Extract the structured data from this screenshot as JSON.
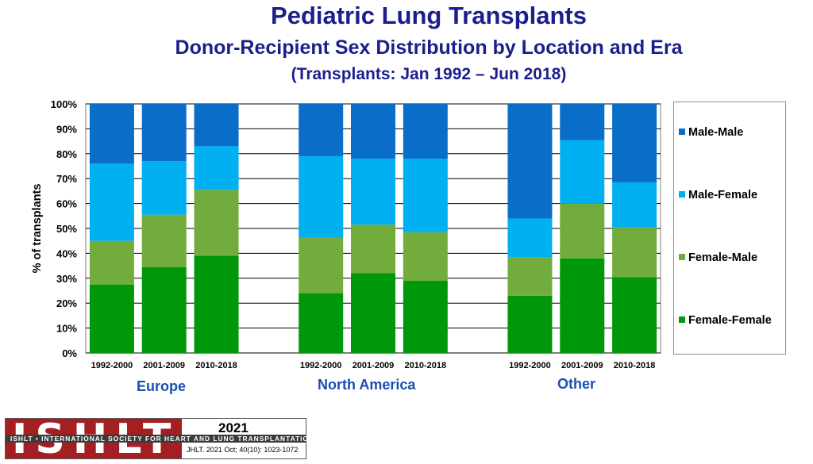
{
  "title": "Pediatric Lung Transplants",
  "subtitle": "Donor-Recipient Sex Distribution by Location and Era",
  "subtitle2": "(Transplants: Jan 1992 – Jun 2018)",
  "colors": {
    "male_male": "#0a6ec8",
    "male_female": "#00b0f0",
    "female_male": "#72ac3c",
    "female_female": "#00970a",
    "title": "#1a1f8c",
    "region": "#1a4fb0"
  },
  "chart_data": {
    "type": "bar",
    "stacked": true,
    "percent": true,
    "title": "Donor-Recipient Sex Distribution by Location and Era",
    "ylabel": "% of transplants",
    "xlabel": "",
    "ylim": [
      0,
      100
    ],
    "yticks": [
      "0%",
      "10%",
      "20%",
      "30%",
      "40%",
      "50%",
      "60%",
      "70%",
      "80%",
      "90%",
      "100%"
    ],
    "groups": [
      "Europe",
      "North America",
      "Other"
    ],
    "categories": [
      "1992-2000",
      "2001-2009",
      "2010-2018",
      "1992-2000",
      "2001-2009",
      "2010-2018",
      "1992-2000",
      "2001-2009",
      "2010-2018"
    ],
    "legend_position": "right",
    "series": [
      {
        "name": "Female-Female",
        "values": [
          27.5,
          34.5,
          39,
          24,
          32,
          29,
          23,
          38,
          30.5
        ]
      },
      {
        "name": "Female-Male",
        "values": [
          17.5,
          21,
          26.5,
          22.5,
          19.5,
          19.5,
          15.5,
          22,
          20
        ]
      },
      {
        "name": "Male-Female",
        "values": [
          31,
          21.5,
          17.5,
          32.5,
          26.5,
          29.5,
          15.5,
          25.5,
          18
        ]
      },
      {
        "name": "Male-Male",
        "values": [
          24,
          23,
          17,
          21,
          22,
          22,
          46,
          14.5,
          31.5
        ]
      }
    ]
  },
  "legend": [
    "Male-Male",
    "Male-Female",
    "Female-Male",
    "Female-Female"
  ],
  "regions": [
    "Europe",
    "North America",
    "Other"
  ],
  "footer": {
    "logo_word": "ISHLT",
    "org_name": "ISHLT • INTERNATIONAL SOCIETY FOR HEART AND LUNG TRANSPLANTATION",
    "year": "2021",
    "citation": "JHLT. 2021 Oct; 40(10): 1023-1072"
  }
}
